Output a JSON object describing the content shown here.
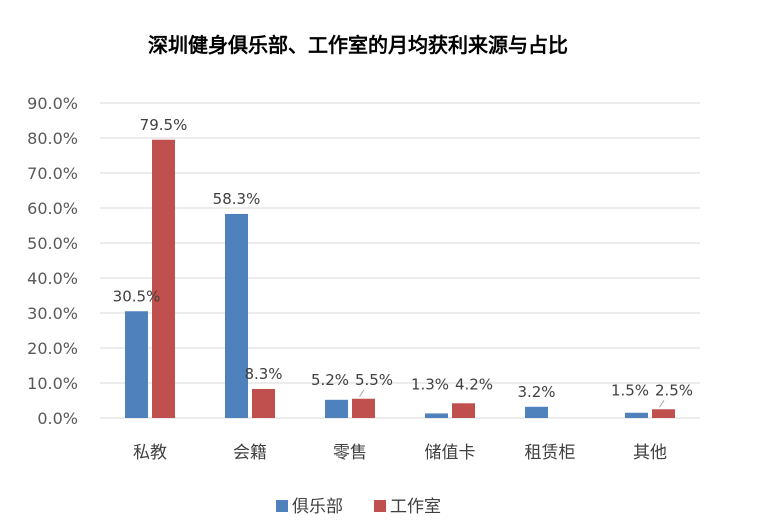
{
  "chart_data": {
    "type": "bar",
    "title": "深圳健身俱乐部、工作室的月均获利来源与占比",
    "categories": [
      "私教",
      "会籍",
      "零售",
      "储值卡",
      "租赁柜",
      "其他"
    ],
    "series": [
      {
        "name": "俱乐部",
        "color": "#4f81bd",
        "values": [
          30.5,
          58.3,
          5.2,
          1.3,
          3.2,
          1.5
        ],
        "labels": [
          "30.5%",
          "58.3%",
          "5.2%",
          "1.3%",
          "3.2%",
          "1.5%"
        ]
      },
      {
        "name": "工作室",
        "color": "#c0504d",
        "values": [
          79.5,
          8.3,
          5.5,
          4.2,
          null,
          2.5
        ],
        "labels": [
          "79.5%",
          "8.3%",
          "5.5%",
          "4.2%",
          "",
          "2.5%"
        ]
      }
    ],
    "ylim": [
      0,
      90
    ],
    "yticks": [
      "0.0%",
      "10.0%",
      "20.0%",
      "30.0%",
      "40.0%",
      "50.0%",
      "60.0%",
      "70.0%",
      "80.0%",
      "90.0%"
    ],
    "grid": true,
    "legend_position": "bottom"
  }
}
